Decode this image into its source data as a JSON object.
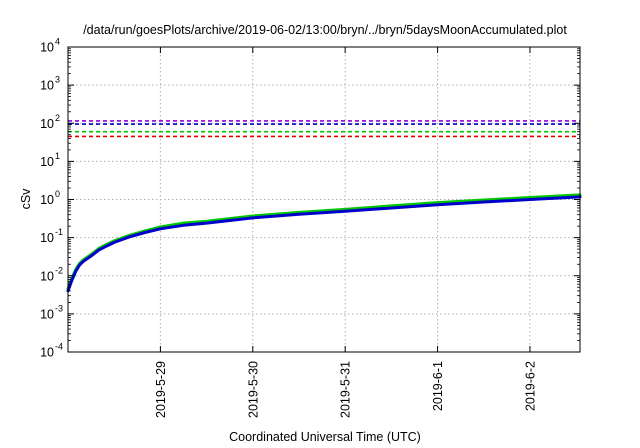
{
  "chart_data": {
    "type": "line",
    "title": "/data/run/goesPlots/archive/2019-06-02/13:00/bryn/../bryn/5daysMoonAccumulated.plot",
    "xlabel": "Coordinated Universal Time (UTC)",
    "ylabel": "cSv",
    "y_scale": "log",
    "ylim": [
      0.0001,
      10000
    ],
    "xlim": [
      "2019-05-28",
      "2019-06-02 13:00"
    ],
    "grid": true,
    "x_ticks": [
      "2019-5-29",
      "2019-5-30",
      "2019-5-31",
      "2019-6-1",
      "2019-6-2"
    ],
    "y_ticks": [
      {
        "base": "10",
        "exp": "-4"
      },
      {
        "base": "10",
        "exp": "-3"
      },
      {
        "base": "10",
        "exp": "-2"
      },
      {
        "base": "10",
        "exp": "-1"
      },
      {
        "base": "10",
        "exp": "0"
      },
      {
        "base": "10",
        "exp": "1"
      },
      {
        "base": "10",
        "exp": "2"
      },
      {
        "base": "10",
        "exp": "3"
      },
      {
        "base": "10",
        "exp": "4"
      }
    ],
    "threshold_lines": [
      {
        "color": "#9400d3",
        "value": 115
      },
      {
        "color": "#0000cd",
        "value": 95
      },
      {
        "color": "#00c800",
        "value": 60
      },
      {
        "color": "#e00000",
        "value": 45
      }
    ],
    "series": [
      {
        "color": "#00c800",
        "x": [
          "2019-05-28 00:00",
          "2019-05-28 01:00",
          "2019-05-28 02:00",
          "2019-05-28 03:00",
          "2019-05-28 04:00",
          "2019-05-28 06:00",
          "2019-05-28 08:00",
          "2019-05-28 10:00",
          "2019-05-28 12:00",
          "2019-05-28 16:00",
          "2019-05-28 20:00",
          "2019-05-29 00:00",
          "2019-05-29 06:00",
          "2019-05-29 12:00",
          "2019-05-30 00:00",
          "2019-05-30 12:00",
          "2019-05-31 00:00",
          "2019-05-31 12:00",
          "2019-06-01 00:00",
          "2019-06-01 12:00",
          "2019-06-02 00:00",
          "2019-06-02 13:00"
        ],
        "y": [
          0.0046,
          0.0085,
          0.0145,
          0.021,
          0.026,
          0.036,
          0.052,
          0.066,
          0.082,
          0.115,
          0.15,
          0.19,
          0.24,
          0.27,
          0.37,
          0.46,
          0.55,
          0.68,
          0.83,
          0.97,
          1.13,
          1.32
        ]
      },
      {
        "color": "#0000cd",
        "x": [
          "2019-05-28 00:00",
          "2019-05-28 01:00",
          "2019-05-28 02:00",
          "2019-05-28 03:00",
          "2019-05-28 04:00",
          "2019-05-28 06:00",
          "2019-05-28 08:00",
          "2019-05-28 10:00",
          "2019-05-28 12:00",
          "2019-05-28 16:00",
          "2019-05-28 20:00",
          "2019-05-29 00:00",
          "2019-05-29 06:00",
          "2019-05-29 12:00",
          "2019-05-30 00:00",
          "2019-05-30 12:00",
          "2019-05-31 00:00",
          "2019-05-31 12:00",
          "2019-06-01 00:00",
          "2019-06-01 12:00",
          "2019-06-02 00:00",
          "2019-06-02 13:00"
        ],
        "y": [
          0.004,
          0.0075,
          0.013,
          0.019,
          0.024,
          0.033,
          0.047,
          0.06,
          0.075,
          0.105,
          0.136,
          0.17,
          0.21,
          0.24,
          0.33,
          0.41,
          0.49,
          0.6,
          0.73,
          0.86,
          1.0,
          1.17
        ]
      }
    ]
  }
}
